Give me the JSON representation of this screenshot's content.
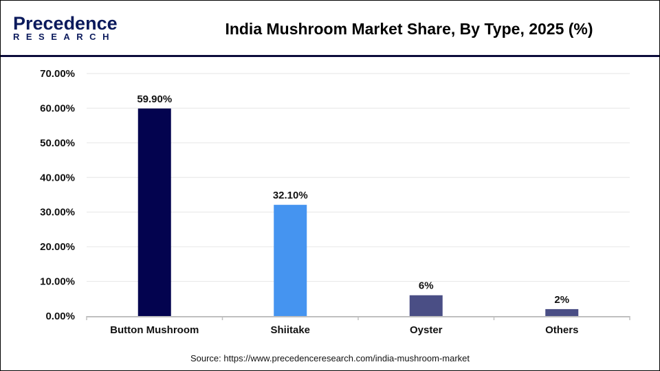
{
  "logo": {
    "line1": "Precedence",
    "line2": "RESEARCH"
  },
  "source": "Source: https://www.precedenceresearch.com/india-mushroom-market",
  "chart_data": {
    "type": "bar",
    "title": "India Mushroom Market Share, By Type, 2025 (%)",
    "categories": [
      "Button Mushroom",
      "Shiitake",
      "Oyster",
      "Others"
    ],
    "values": [
      59.9,
      32.1,
      6,
      2
    ],
    "data_labels": [
      "59.90%",
      "32.10%",
      "6%",
      "2%"
    ],
    "colors": [
      "#03034f",
      "#4594f0",
      "#4a4e85",
      "#4a4e85"
    ],
    "ylim": [
      0,
      70
    ],
    "yticks": [
      0,
      10,
      20,
      30,
      40,
      50,
      60,
      70
    ],
    "ytick_labels": [
      "0.00%",
      "10.00%",
      "20.00%",
      "30.00%",
      "40.00%",
      "50.00%",
      "60.00%",
      "70.00%"
    ],
    "grid": true,
    "xlabel": "",
    "ylabel": ""
  }
}
